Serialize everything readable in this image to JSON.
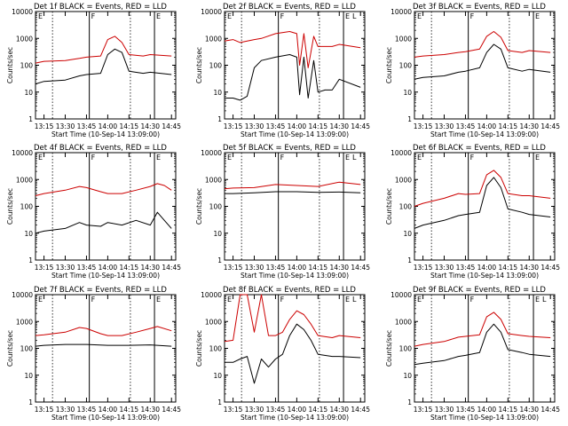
{
  "chart_data": [
    {
      "type": "line",
      "title": "Det 1f BLACK = Events, RED = LLD",
      "xlabel": "Start Time (10-Sep-14 13:09:00)",
      "ylabel": "Counts/sec",
      "x_ticks": [
        "13:15",
        "13:30",
        "13:45",
        "14:00",
        "14:15",
        "14:30",
        "14:45"
      ],
      "y_ticks": [
        "1",
        "10",
        "100",
        "1000",
        "10000"
      ],
      "ylim": [
        1,
        10000
      ],
      "scale": "log",
      "markers": [
        "E",
        "F",
        "E"
      ],
      "series": [
        {
          "color": "#000000",
          "x": [
            "13:09",
            "13:15",
            "13:30",
            "13:40",
            "13:45",
            "13:55",
            "14:00",
            "14:05",
            "14:10",
            "14:15",
            "14:25",
            "14:30",
            "14:45"
          ],
          "values": [
            20,
            25,
            28,
            40,
            45,
            50,
            250,
            400,
            300,
            60,
            50,
            55,
            45
          ]
        },
        {
          "color": "#cc0000",
          "x": [
            "13:09",
            "13:15",
            "13:30",
            "13:40",
            "13:45",
            "13:55",
            "14:00",
            "14:05",
            "14:10",
            "14:15",
            "14:25",
            "14:30",
            "14:45"
          ],
          "values": [
            120,
            140,
            150,
            180,
            200,
            220,
            900,
            1200,
            700,
            250,
            220,
            250,
            220
          ]
        }
      ]
    },
    {
      "type": "line",
      "title": "Det 2f BLACK = Events, RED = LLD",
      "xlabel": "Start Time (10-Sep-14 13:09:00)",
      "ylabel": "Counts/sec",
      "x_ticks": [
        "13:15",
        "13:30",
        "13:45",
        "14:00",
        "14:15",
        "14:30",
        "14:45"
      ],
      "y_ticks": [
        "1",
        "10",
        "100",
        "1000",
        "10000"
      ],
      "ylim": [
        1,
        10000
      ],
      "scale": "log",
      "markers": [
        "E",
        "F",
        "E",
        "L"
      ],
      "series": [
        {
          "color": "#000000",
          "x": [
            "13:09",
            "13:15",
            "13:20",
            "13:25",
            "13:30",
            "13:35",
            "13:45",
            "13:55",
            "14:00",
            "14:02",
            "14:05",
            "14:08",
            "14:12",
            "14:15",
            "14:20",
            "14:25",
            "14:30",
            "14:45"
          ],
          "values": [
            6,
            6,
            5,
            7,
            80,
            150,
            200,
            250,
            200,
            8,
            200,
            6,
            150,
            10,
            12,
            12,
            30,
            15
          ]
        },
        {
          "color": "#cc0000",
          "x": [
            "13:09",
            "13:15",
            "13:20",
            "13:25",
            "13:30",
            "13:35",
            "13:45",
            "13:55",
            "14:00",
            "14:02",
            "14:05",
            "14:08",
            "14:12",
            "14:15",
            "14:20",
            "14:25",
            "14:30",
            "14:45"
          ],
          "values": [
            800,
            900,
            700,
            800,
            900,
            1000,
            1500,
            1800,
            1500,
            100,
            1500,
            80,
            1200,
            500,
            500,
            500,
            600,
            450
          ]
        }
      ]
    },
    {
      "type": "line",
      "title": "Det 3f BLACK = Events, RED = LLD",
      "xlabel": "Start Time (10-Sep-14 13:09:00)",
      "ylabel": "Counts/sec",
      "x_ticks": [
        "13:15",
        "13:30",
        "13:45",
        "14:00",
        "14:15",
        "14:30",
        "14:45"
      ],
      "y_ticks": [
        "1",
        "10",
        "100",
        "1000",
        "10000"
      ],
      "ylim": [
        1,
        10000
      ],
      "scale": "log",
      "markers": [
        "E",
        "F",
        "E"
      ],
      "series": [
        {
          "color": "#000000",
          "x": [
            "13:09",
            "13:15",
            "13:30",
            "13:40",
            "13:45",
            "13:55",
            "14:00",
            "14:05",
            "14:10",
            "14:15",
            "14:25",
            "14:30",
            "14:45"
          ],
          "values": [
            30,
            35,
            40,
            55,
            60,
            80,
            300,
            600,
            400,
            80,
            60,
            70,
            55
          ]
        },
        {
          "color": "#cc0000",
          "x": [
            "13:09",
            "13:15",
            "13:30",
            "13:40",
            "13:45",
            "13:55",
            "14:00",
            "14:05",
            "14:10",
            "14:15",
            "14:25",
            "14:30",
            "14:45"
          ],
          "values": [
            200,
            220,
            250,
            300,
            320,
            400,
            1200,
            1800,
            1100,
            350,
            300,
            350,
            300
          ]
        }
      ]
    },
    {
      "type": "line",
      "title": "Det 4f BLACK = Events, RED = LLD",
      "xlabel": "Start Time (10-Sep-14 13:09:00)",
      "ylabel": "Counts/sec",
      "x_ticks": [
        "13:15",
        "13:30",
        "13:45",
        "14:00",
        "14:15",
        "14:30",
        "14:45"
      ],
      "y_ticks": [
        "1",
        "10",
        "100",
        "1000",
        "10000"
      ],
      "ylim": [
        1,
        10000
      ],
      "scale": "log",
      "markers": [
        "E",
        "F",
        "E"
      ],
      "series": [
        {
          "color": "#000000",
          "x": [
            "13:09",
            "13:15",
            "13:30",
            "13:40",
            "13:45",
            "13:55",
            "14:00",
            "14:10",
            "14:20",
            "14:30",
            "14:35",
            "14:40",
            "14:45"
          ],
          "values": [
            10,
            12,
            15,
            25,
            20,
            18,
            25,
            20,
            30,
            20,
            60,
            30,
            15
          ]
        },
        {
          "color": "#cc0000",
          "x": [
            "13:09",
            "13:15",
            "13:30",
            "13:40",
            "13:45",
            "13:55",
            "14:00",
            "14:10",
            "14:20",
            "14:30",
            "14:35",
            "14:40",
            "14:45"
          ],
          "values": [
            250,
            300,
            400,
            550,
            500,
            350,
            300,
            300,
            400,
            550,
            700,
            600,
            400
          ]
        }
      ]
    },
    {
      "type": "line",
      "title": "Det 5f BLACK = Events, RED = LLD",
      "xlabel": "Start Time (10-Sep-14 13:09:00)",
      "ylabel": "Counts/sec",
      "x_ticks": [
        "13:15",
        "13:30",
        "13:45",
        "14:00",
        "14:15",
        "14:30",
        "14:45"
      ],
      "y_ticks": [
        "1",
        "10",
        "100",
        "1000",
        "10000"
      ],
      "ylim": [
        1,
        10000
      ],
      "scale": "log",
      "markers": [
        "E",
        "F",
        "E",
        "L"
      ],
      "series": [
        {
          "color": "#000000",
          "x": [
            "13:09",
            "13:15",
            "13:30",
            "13:45",
            "14:00",
            "14:15",
            "14:30",
            "14:45"
          ],
          "values": [
            300,
            300,
            320,
            350,
            350,
            330,
            340,
            320
          ]
        },
        {
          "color": "#cc0000",
          "x": [
            "13:09",
            "13:15",
            "13:30",
            "13:45",
            "14:00",
            "14:15",
            "14:30",
            "14:45"
          ],
          "values": [
            450,
            480,
            500,
            650,
            600,
            550,
            800,
            650
          ]
        }
      ]
    },
    {
      "type": "line",
      "title": "Det 6f BLACK = Events, RED = LLD",
      "xlabel": "Start Time (10-Sep-14 13:09:00)",
      "ylabel": "Counts/sec",
      "x_ticks": [
        "13:15",
        "13:30",
        "13:45",
        "14:00",
        "14:15",
        "14:30",
        "14:45"
      ],
      "y_ticks": [
        "1",
        "10",
        "100",
        "1000",
        "10000"
      ],
      "ylim": [
        1,
        10000
      ],
      "scale": "log",
      "markers": [
        "E",
        "F",
        "E"
      ],
      "series": [
        {
          "color": "#000000",
          "x": [
            "13:09",
            "13:15",
            "13:30",
            "13:40",
            "13:45",
            "13:55",
            "14:00",
            "14:05",
            "14:10",
            "14:15",
            "14:25",
            "14:30",
            "14:45"
          ],
          "values": [
            15,
            20,
            30,
            45,
            50,
            60,
            600,
            1200,
            500,
            80,
            60,
            50,
            40
          ]
        },
        {
          "color": "#cc0000",
          "x": [
            "13:09",
            "13:15",
            "13:30",
            "13:40",
            "13:45",
            "13:55",
            "14:00",
            "14:05",
            "14:10",
            "14:15",
            "14:25",
            "14:30",
            "14:45"
          ],
          "values": [
            100,
            130,
            200,
            300,
            280,
            300,
            1500,
            2200,
            1200,
            300,
            250,
            250,
            200
          ]
        }
      ]
    },
    {
      "type": "line",
      "title": "Det 7f BLACK = Events, RED = LLD",
      "xlabel": "Start Time (10-Sep-14 13:09:00)",
      "ylabel": "Counts/sec",
      "x_ticks": [
        "13:15",
        "13:30",
        "13:45",
        "14:00",
        "14:15",
        "14:30",
        "14:45"
      ],
      "y_ticks": [
        "1",
        "10",
        "100",
        "1000",
        "10000"
      ],
      "ylim": [
        1,
        10000
      ],
      "scale": "log",
      "markers": [
        "E",
        "F",
        "E"
      ],
      "series": [
        {
          "color": "#000000",
          "x": [
            "13:09",
            "13:15",
            "13:30",
            "13:45",
            "14:00",
            "14:15",
            "14:30",
            "14:45"
          ],
          "values": [
            120,
            130,
            140,
            140,
            130,
            130,
            135,
            120
          ]
        },
        {
          "color": "#cc0000",
          "x": [
            "13:09",
            "13:15",
            "13:30",
            "13:40",
            "13:45",
            "13:55",
            "14:00",
            "14:10",
            "14:20",
            "14:30",
            "14:35",
            "14:45"
          ],
          "values": [
            300,
            320,
            400,
            600,
            550,
            350,
            300,
            300,
            400,
            550,
            650,
            450
          ]
        }
      ]
    },
    {
      "type": "line",
      "title": "Det 8f BLACK = Events, RED = LLD",
      "xlabel": "Start Time (10-Sep-14 13:09:00)",
      "ylabel": "Counts/sec",
      "x_ticks": [
        "13:15",
        "13:30",
        "13:45",
        "14:00",
        "14:15",
        "14:30",
        "14:45"
      ],
      "y_ticks": [
        "1",
        "10",
        "100",
        "1000",
        "10000"
      ],
      "ylim": [
        1,
        10000
      ],
      "scale": "log",
      "markers": [
        "E",
        "F",
        "E",
        "L"
      ],
      "series": [
        {
          "color": "#000000",
          "x": [
            "13:09",
            "13:15",
            "13:20",
            "13:25",
            "13:30",
            "13:35",
            "13:40",
            "13:45",
            "13:50",
            "13:55",
            "14:00",
            "14:05",
            "14:10",
            "14:15",
            "14:25",
            "14:30",
            "14:45"
          ],
          "values": [
            30,
            30,
            40,
            50,
            5,
            40,
            20,
            40,
            60,
            300,
            800,
            500,
            200,
            60,
            50,
            50,
            45
          ]
        },
        {
          "color": "#cc0000",
          "x": [
            "13:09",
            "13:15",
            "13:20",
            "13:25",
            "13:30",
            "13:35",
            "13:40",
            "13:45",
            "13:50",
            "13:55",
            "14:00",
            "14:05",
            "14:10",
            "14:15",
            "14:25",
            "14:30",
            "14:45"
          ],
          "values": [
            180,
            200,
            10000,
            10000,
            400,
            10000,
            300,
            300,
            400,
            1200,
            2500,
            1800,
            800,
            300,
            250,
            300,
            250
          ]
        }
      ]
    },
    {
      "type": "line",
      "title": "Det 9f BLACK = Events, RED = LLD",
      "xlabel": "Start Time (10-Sep-14 13:09:00)",
      "ylabel": "Counts/sec",
      "x_ticks": [
        "13:15",
        "13:30",
        "13:45",
        "14:00",
        "14:15",
        "14:30",
        "14:45"
      ],
      "y_ticks": [
        "1",
        "10",
        "100",
        "1000",
        "10000"
      ],
      "ylim": [
        1,
        10000
      ],
      "scale": "log",
      "markers": [
        "E",
        "F",
        "E",
        "L"
      ],
      "series": [
        {
          "color": "#000000",
          "x": [
            "13:09",
            "13:15",
            "13:30",
            "13:40",
            "13:45",
            "13:55",
            "14:00",
            "14:05",
            "14:10",
            "14:15",
            "14:25",
            "14:30",
            "14:45"
          ],
          "values": [
            25,
            28,
            35,
            50,
            55,
            70,
            400,
            800,
            400,
            90,
            70,
            60,
            50
          ]
        },
        {
          "color": "#cc0000",
          "x": [
            "13:09",
            "13:15",
            "13:30",
            "13:40",
            "13:45",
            "13:55",
            "14:00",
            "14:05",
            "14:10",
            "14:15",
            "14:25",
            "14:30",
            "14:45"
          ],
          "values": [
            120,
            140,
            180,
            260,
            280,
            320,
            1500,
            2200,
            1200,
            350,
            300,
            280,
            250
          ]
        }
      ]
    }
  ]
}
